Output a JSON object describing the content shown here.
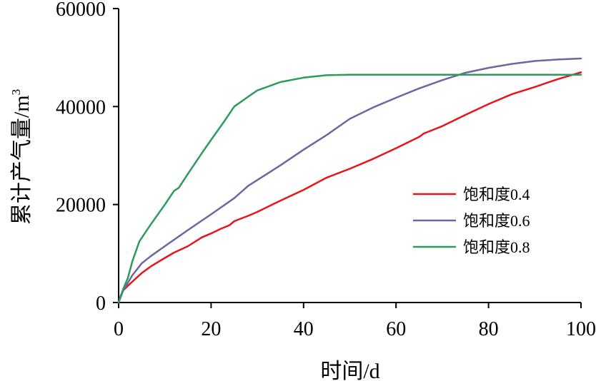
{
  "chart_data": {
    "type": "line",
    "xlabel": "时间/d",
    "ylabel_base": "累计产气量/m",
    "ylabel_sup": "3",
    "xlim": [
      0,
      100
    ],
    "ylim": [
      0,
      60000
    ],
    "xticks": [
      "0",
      "20",
      "40",
      "60",
      "80",
      "100"
    ],
    "yticks": [
      "0",
      "20000",
      "40000",
      "60000"
    ],
    "grid": false,
    "legend_position": "right",
    "series": [
      {
        "name": "饱和度0.4",
        "color": "#e8141b",
        "points": [
          [
            0,
            0
          ],
          [
            0.5,
            1500
          ],
          [
            1,
            2500
          ],
          [
            2,
            3400
          ],
          [
            3,
            4300
          ],
          [
            5,
            6000
          ],
          [
            7,
            7400
          ],
          [
            10,
            9100
          ],
          [
            12,
            10200
          ],
          [
            15,
            11500
          ],
          [
            18,
            13300
          ],
          [
            20,
            14100
          ],
          [
            22,
            15000
          ],
          [
            24,
            15800
          ],
          [
            25,
            16600
          ],
          [
            28,
            17700
          ],
          [
            30,
            18500
          ],
          [
            35,
            20800
          ],
          [
            40,
            23000
          ],
          [
            45,
            25500
          ],
          [
            50,
            27300
          ],
          [
            55,
            29300
          ],
          [
            60,
            31500
          ],
          [
            65,
            33800
          ],
          [
            66,
            34500
          ],
          [
            70,
            36000
          ],
          [
            75,
            38300
          ],
          [
            80,
            40500
          ],
          [
            85,
            42500
          ],
          [
            90,
            44000
          ],
          [
            95,
            45600
          ],
          [
            100,
            47000
          ]
        ]
      },
      {
        "name": "饱和度0.6",
        "color": "#6a68a0",
        "points": [
          [
            0,
            0
          ],
          [
            1,
            2500
          ],
          [
            2,
            4000
          ],
          [
            3,
            5600
          ],
          [
            5,
            8000
          ],
          [
            7,
            9500
          ],
          [
            10,
            11500
          ],
          [
            15,
            14800
          ],
          [
            20,
            18000
          ],
          [
            25,
            21300
          ],
          [
            28,
            23800
          ],
          [
            30,
            25000
          ],
          [
            35,
            28000
          ],
          [
            40,
            31200
          ],
          [
            45,
            34200
          ],
          [
            50,
            37500
          ],
          [
            55,
            39800
          ],
          [
            60,
            41800
          ],
          [
            65,
            43700
          ],
          [
            70,
            45400
          ],
          [
            75,
            46900
          ],
          [
            80,
            47900
          ],
          [
            85,
            48700
          ],
          [
            90,
            49300
          ],
          [
            95,
            49600
          ],
          [
            100,
            49800
          ]
        ]
      },
      {
        "name": "饱和度0.8",
        "color": "#2e9a5e",
        "points": [
          [
            0,
            0
          ],
          [
            1,
            2800
          ],
          [
            2,
            5000
          ],
          [
            3,
            8500
          ],
          [
            4.5,
            12500
          ],
          [
            7,
            16000
          ],
          [
            10,
            20000
          ],
          [
            12,
            22800
          ],
          [
            13,
            23400
          ],
          [
            15,
            26300
          ],
          [
            18,
            30500
          ],
          [
            20,
            33200
          ],
          [
            23,
            37200
          ],
          [
            25,
            40000
          ],
          [
            28,
            42000
          ],
          [
            30,
            43300
          ],
          [
            35,
            45000
          ],
          [
            40,
            45900
          ],
          [
            45,
            46400
          ],
          [
            50,
            46500
          ],
          [
            60,
            46500
          ],
          [
            70,
            46500
          ],
          [
            80,
            46500
          ],
          [
            90,
            46500
          ],
          [
            100,
            46500
          ]
        ]
      }
    ]
  }
}
